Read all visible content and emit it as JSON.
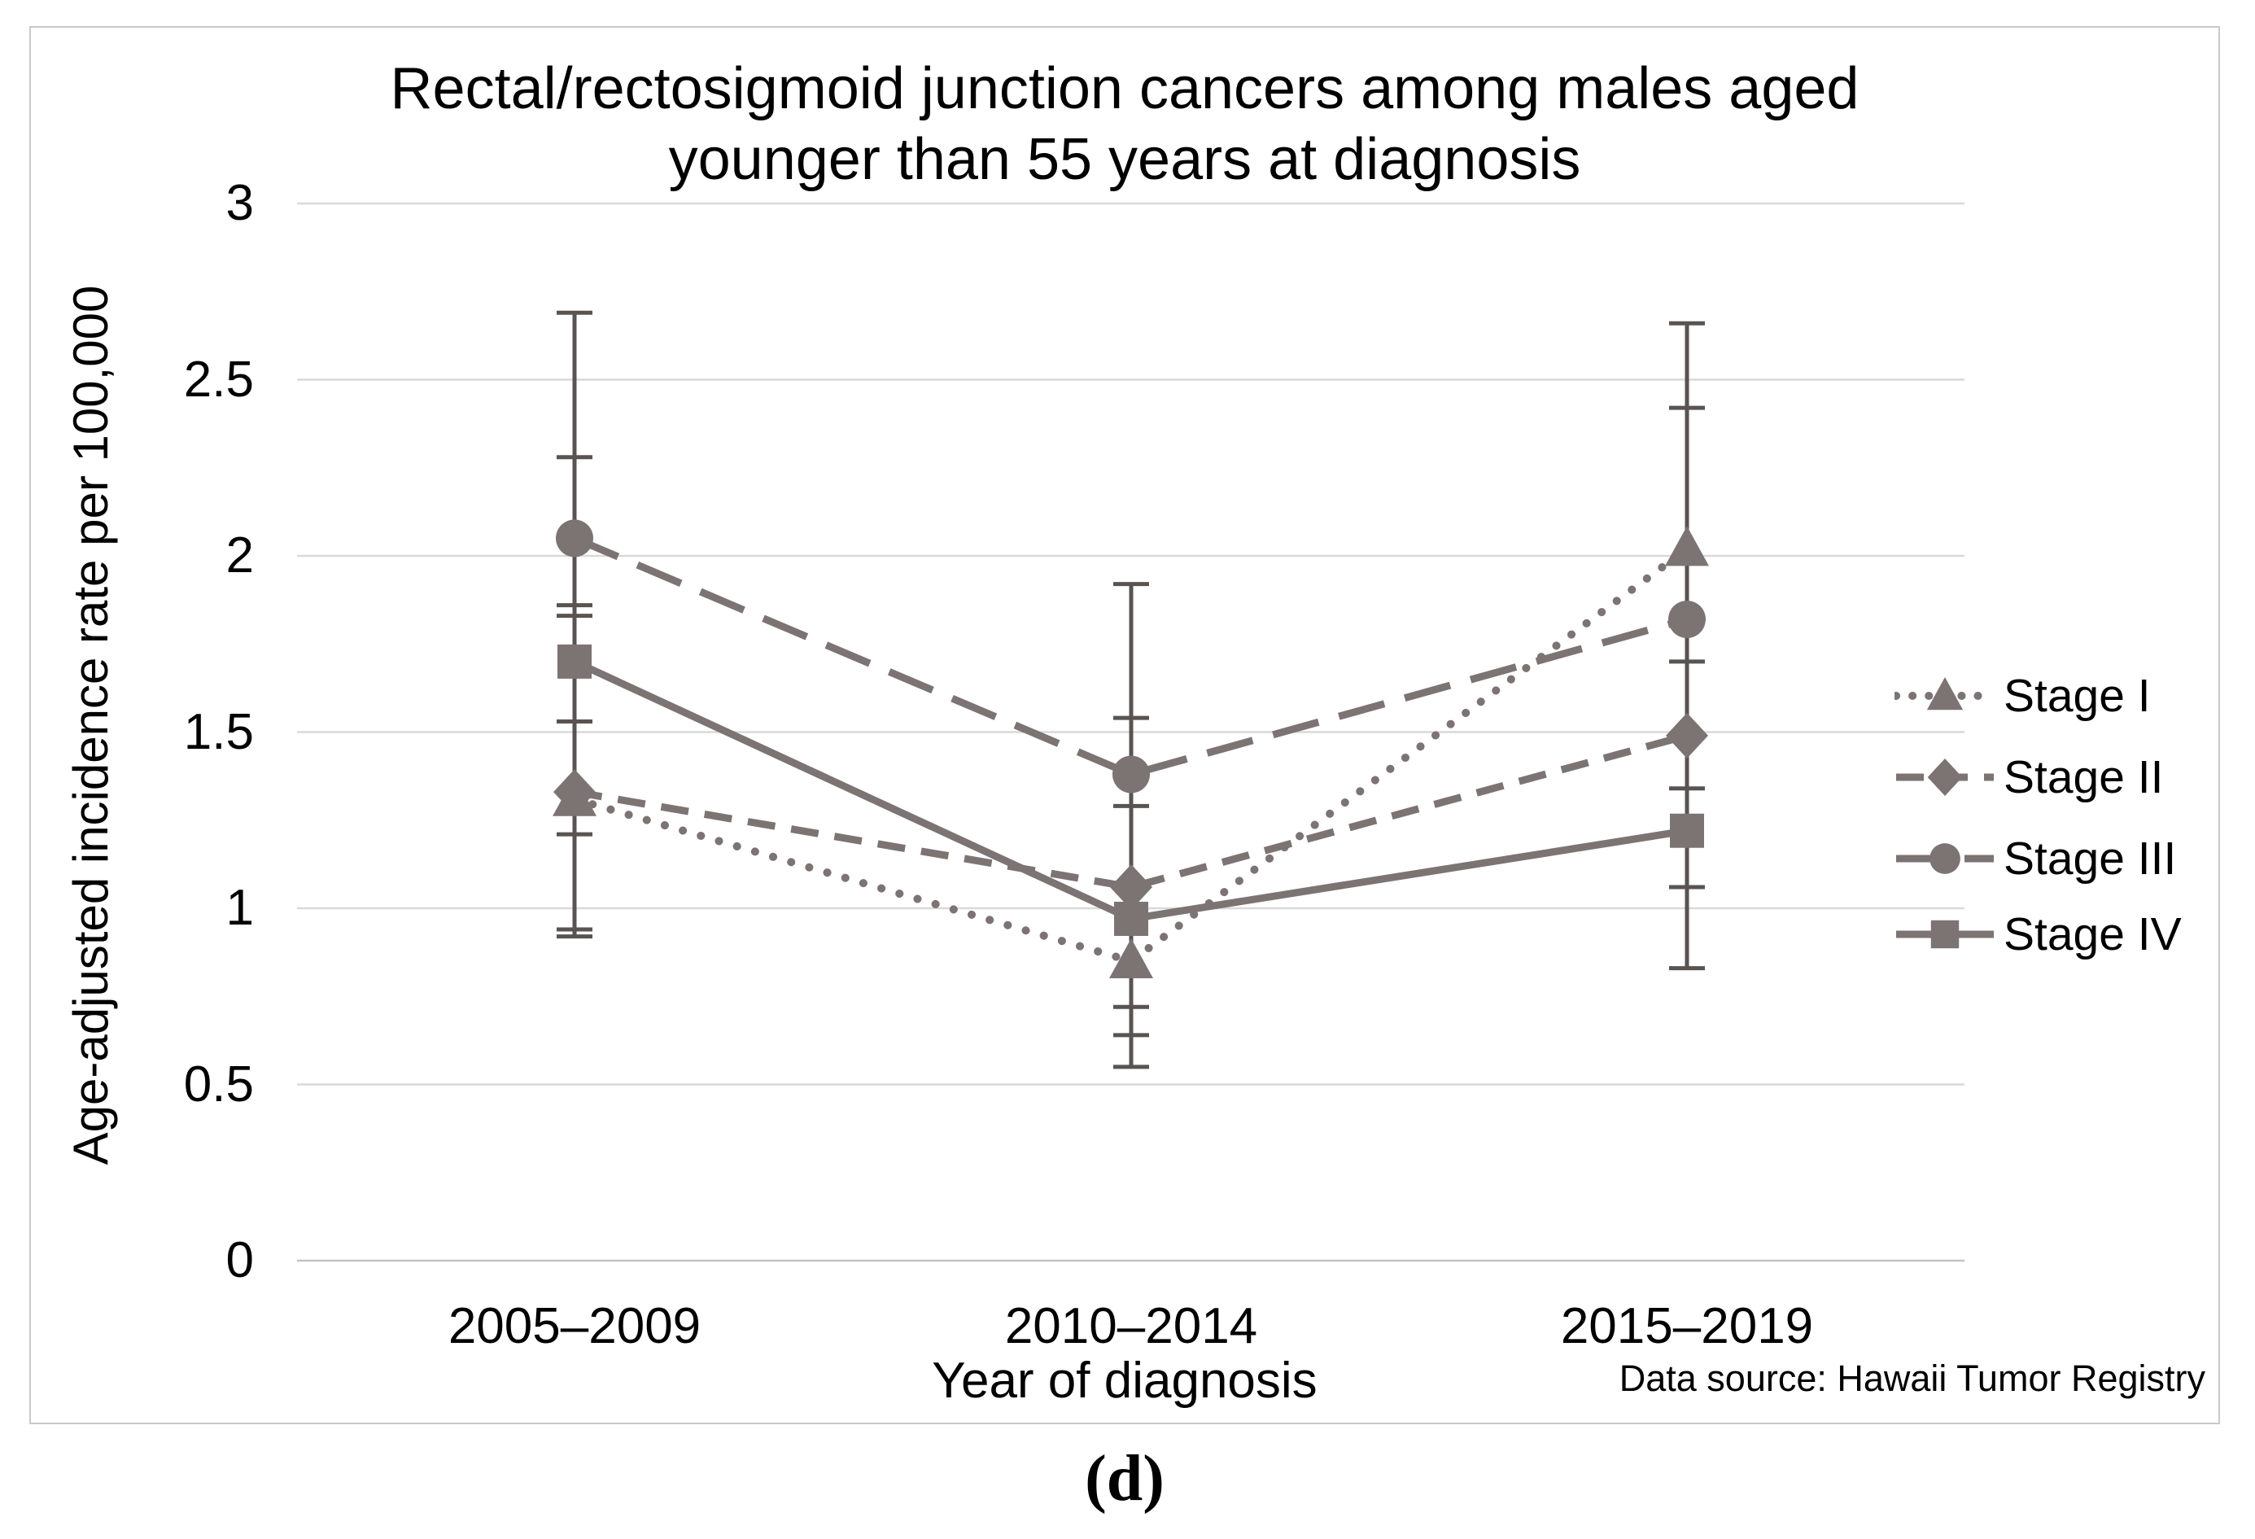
{
  "chart": {
    "title_line1": "Rectal/rectosigmoid junction cancers among males aged",
    "title_line2": "younger than 55 years at diagnosis",
    "y_axis_title": "Age-adjusted incidence rate per 100,000",
    "x_axis_title": "Year of diagnosis",
    "data_source_note": "Data source: Hawaii Tumor Registry"
  },
  "figure": {
    "panel_label": "(d)"
  },
  "chart_data": {
    "type": "line",
    "title": "Rectal/rectosigmoid junction cancers among males aged younger than 55 years at diagnosis",
    "xlabel": "Year of diagnosis",
    "ylabel": "Age-adjusted incidence rate per 100,000",
    "categories": [
      "2005–2009",
      "2010–2014",
      "2015–2019"
    ],
    "y_ticks": [
      0,
      0.5,
      1,
      1.5,
      2,
      2.5,
      3
    ],
    "y_tick_labels": [
      "0",
      "0.5",
      "1",
      "1.5",
      "2",
      "2.5",
      "3"
    ],
    "ylim": [
      0,
      3
    ],
    "grid": "horizontal",
    "legend_position": "right",
    "series": [
      {
        "name": "Stage I",
        "marker": "triangle",
        "line_style": "dotted",
        "values": [
          1.31,
          0.85,
          2.02
        ]
      },
      {
        "name": "Stage II",
        "marker": "diamond",
        "line_style": "dashed-short",
        "values": [
          1.33,
          1.06,
          1.49
        ]
      },
      {
        "name": "Stage III",
        "marker": "circle",
        "line_style": "dashed-long",
        "values": [
          2.05,
          1.38,
          1.82
        ]
      },
      {
        "name": "Stage IV",
        "marker": "square",
        "line_style": "solid",
        "values": [
          1.7,
          0.97,
          1.22
        ]
      }
    ],
    "error_bars": [
      {
        "category": "2005–2009",
        "min": 0.92,
        "max": 2.69,
        "caps": [
          2.69,
          2.28,
          1.86,
          1.83,
          1.53,
          1.21,
          0.94,
          0.92
        ]
      },
      {
        "category": "2010–2014",
        "min": 0.55,
        "max": 1.92,
        "caps": [
          1.92,
          1.54,
          1.29,
          0.72,
          0.64,
          0.55
        ]
      },
      {
        "category": "2015–2019",
        "min": 0.83,
        "max": 2.66,
        "caps": [
          2.66,
          2.42,
          1.7,
          1.34,
          1.06,
          0.83
        ]
      }
    ],
    "colors": {
      "series": "#7b7472",
      "error_bar": "#595451",
      "gridline": "#d9d9d9",
      "zero_line": "#c3c3c3",
      "border": "#c9c9c9",
      "text": "#000000"
    }
  }
}
